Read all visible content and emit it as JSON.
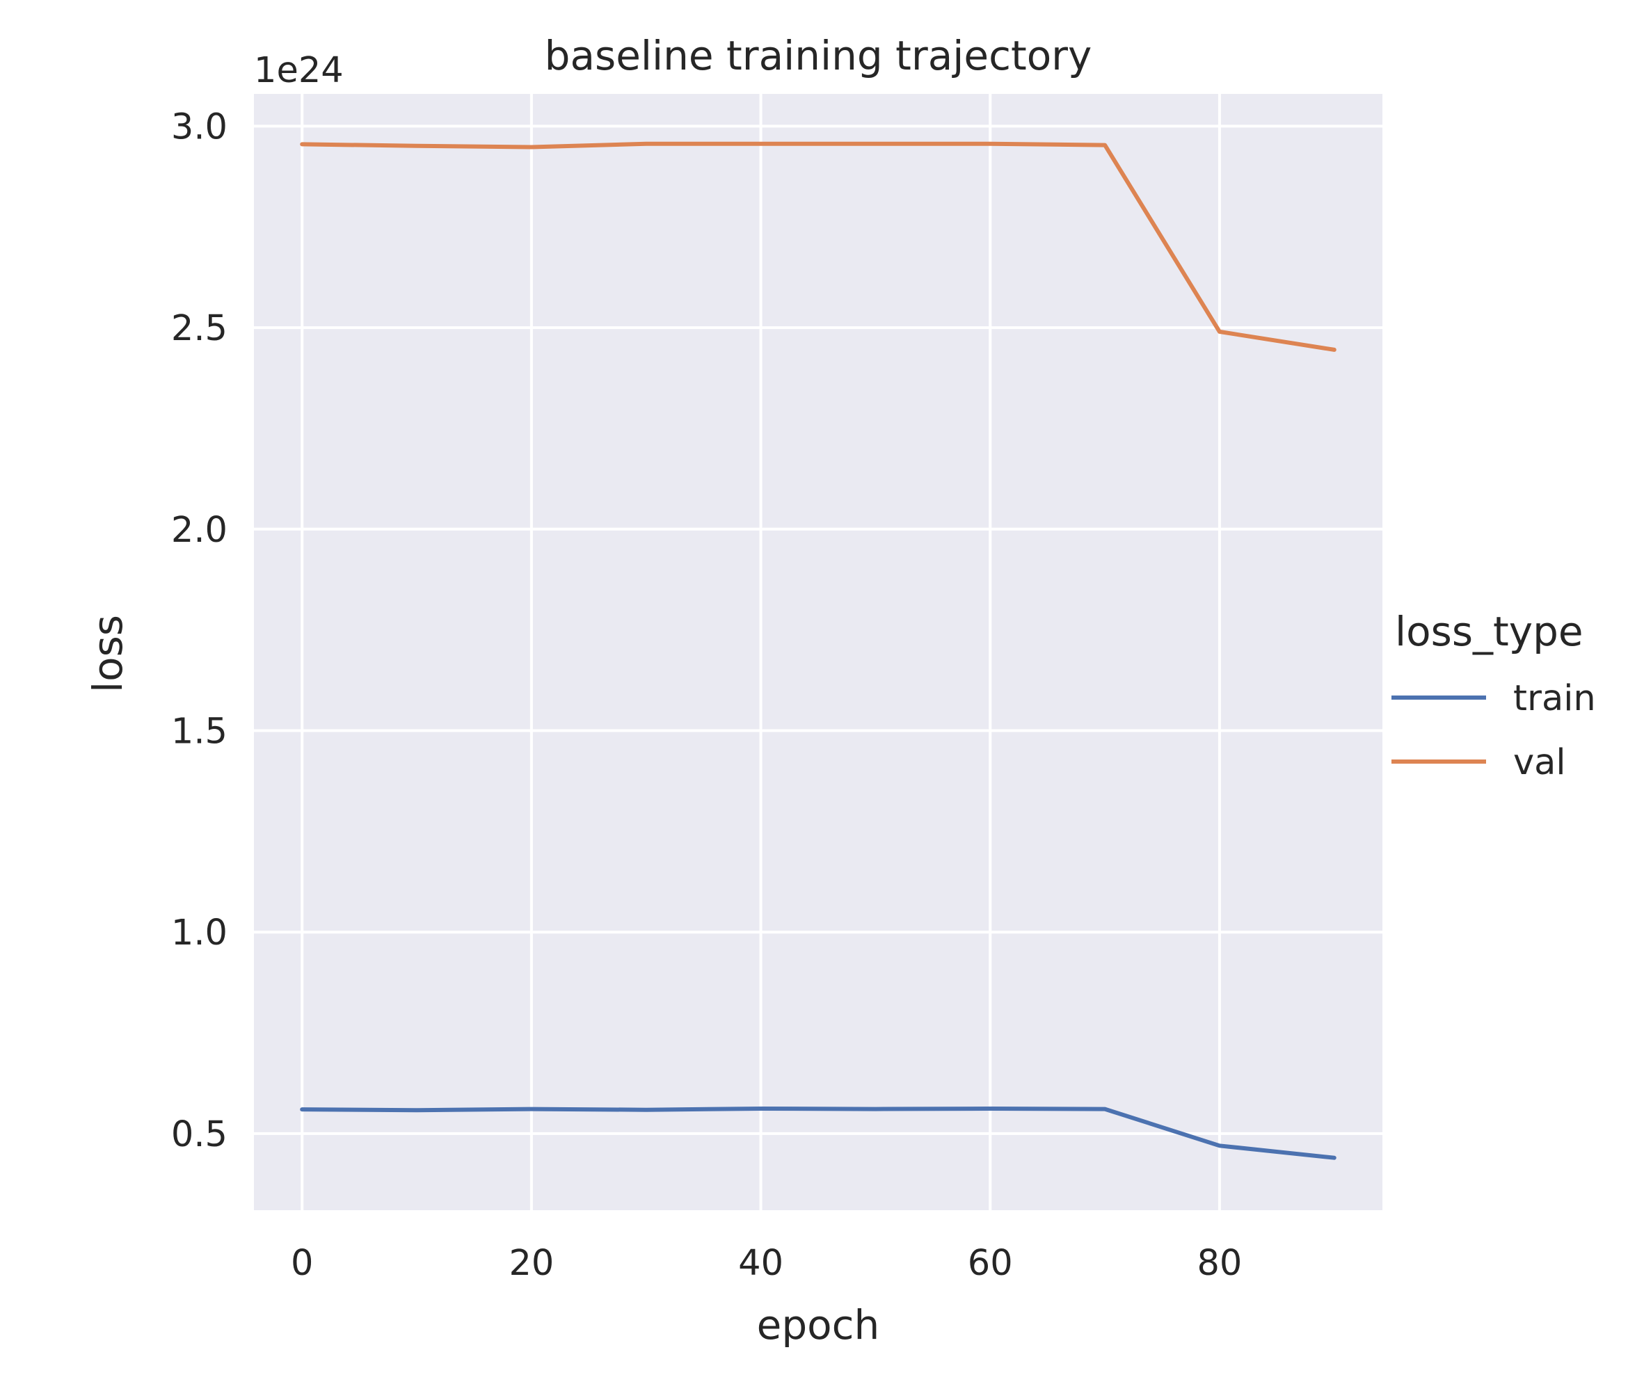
{
  "chart_data": {
    "type": "line",
    "title": "baseline training trajectory",
    "xlabel": "epoch",
    "ylabel": "loss",
    "y_offset_label": "1e24",
    "x": [
      0,
      10,
      20,
      30,
      40,
      50,
      60,
      70,
      80,
      90
    ],
    "xlim": [
      -4.2,
      94.2
    ],
    "ylim": [
      0.31,
      3.08
    ],
    "x_ticks": [
      0,
      20,
      40,
      60,
      80
    ],
    "x_tick_labels": [
      "0",
      "20",
      "40",
      "60",
      "80"
    ],
    "y_ticks": [
      0.5,
      1.0,
      1.5,
      2.0,
      2.5,
      3.0
    ],
    "y_tick_labels": [
      "0.5",
      "1.0",
      "1.5",
      "2.0",
      "2.5",
      "3.0"
    ],
    "y_unit_multiplier": "1e24",
    "grid": true,
    "legend": {
      "title": "loss_type",
      "placement": "right"
    },
    "series": [
      {
        "name": "train",
        "color": "#4c72b0",
        "values": [
          0.56,
          0.558,
          0.561,
          0.559,
          0.562,
          0.561,
          0.562,
          0.561,
          0.47,
          0.44
        ]
      },
      {
        "name": "val",
        "color": "#dd8452",
        "values": [
          2.955,
          2.951,
          2.948,
          2.956,
          2.956,
          2.956,
          2.956,
          2.953,
          2.49,
          2.445
        ]
      }
    ]
  }
}
